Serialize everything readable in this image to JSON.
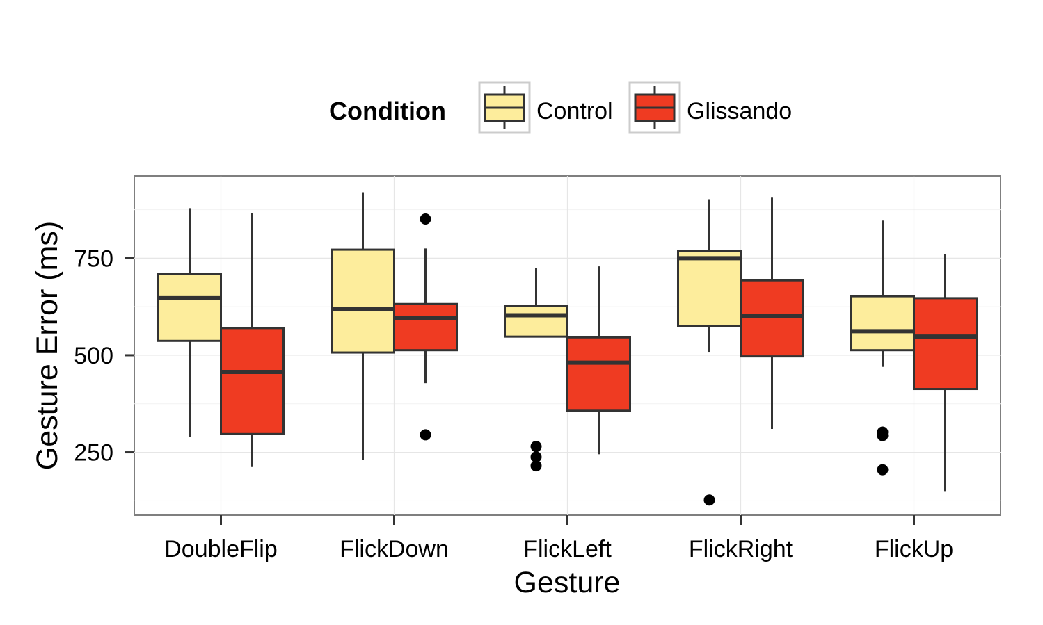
{
  "chart_data": {
    "type": "box",
    "xlabel": "Gesture",
    "ylabel": "Gesture Error (ms)",
    "ylim": [
      88,
      962
    ],
    "yticks": [
      250,
      500,
      750
    ],
    "y_minor_ticks": [
      125,
      375,
      625,
      875
    ],
    "grid": true,
    "legend": {
      "title": "Condition",
      "position": "top",
      "entries": [
        "Control",
        "Glissando"
      ]
    },
    "categories": [
      "DoubleFlip",
      "FlickDown",
      "FlickLeft",
      "FlickRight",
      "FlickUp"
    ],
    "series": [
      {
        "name": "Control",
        "color": "#fded9c",
        "boxes": [
          {
            "category": "DoubleFlip",
            "lower_whisker": 290,
            "q1": 537,
            "median": 647,
            "q3": 710,
            "upper_whisker": 879,
            "outliers": []
          },
          {
            "category": "FlickDown",
            "lower_whisker": 230,
            "q1": 507,
            "median": 620,
            "q3": 772,
            "upper_whisker": 920,
            "outliers": []
          },
          {
            "category": "FlickLeft",
            "lower_whisker": 548,
            "q1": 548,
            "median": 603,
            "q3": 627,
            "upper_whisker": 725,
            "outliers": [
              265,
              238,
              215
            ]
          },
          {
            "category": "FlickRight",
            "lower_whisker": 507,
            "q1": 575,
            "median": 750,
            "q3": 769,
            "upper_whisker": 902,
            "outliers": [
              127
            ]
          },
          {
            "category": "FlickUp",
            "lower_whisker": 470,
            "q1": 513,
            "median": 562,
            "q3": 652,
            "upper_whisker": 847,
            "outliers": [
              302,
              293,
              205
            ]
          }
        ]
      },
      {
        "name": "Glissando",
        "color": "#ef3b22",
        "boxes": [
          {
            "category": "DoubleFlip",
            "lower_whisker": 212,
            "q1": 297,
            "median": 457,
            "q3": 570,
            "upper_whisker": 866,
            "outliers": []
          },
          {
            "category": "FlickDown",
            "lower_whisker": 428,
            "q1": 513,
            "median": 595,
            "q3": 632,
            "upper_whisker": 775,
            "outliers": [
              851,
              295
            ]
          },
          {
            "category": "FlickLeft",
            "lower_whisker": 245,
            "q1": 357,
            "median": 481,
            "q3": 546,
            "upper_whisker": 729,
            "outliers": []
          },
          {
            "category": "FlickRight",
            "lower_whisker": 310,
            "q1": 497,
            "median": 602,
            "q3": 693,
            "upper_whisker": 906,
            "outliers": []
          },
          {
            "category": "FlickUp",
            "lower_whisker": 150,
            "q1": 413,
            "median": 548,
            "q3": 647,
            "upper_whisker": 760,
            "outliers": []
          }
        ]
      }
    ]
  }
}
